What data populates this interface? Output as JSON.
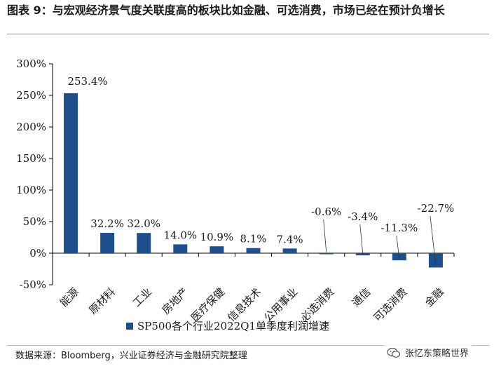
{
  "title": "图表 9：与宏观经济景气度关联度高的板块比如金融、可选消费，市场已经在预计负增长",
  "source": "数据来源：Bloomberg，兴业证券经济与金融研究院整理",
  "watermark": {
    "text": "张忆东策略世界",
    "icon": "wechat-icon"
  },
  "colors": {
    "bar": "#1f4e8c",
    "axis": "#000000"
  },
  "chart_data": {
    "type": "bar",
    "categories": [
      "能源",
      "原材料",
      "工业",
      "房地产",
      "医疗保健",
      "信息技术",
      "公用事业",
      "必选消费",
      "通信",
      "可选消费",
      "金融"
    ],
    "series": [
      {
        "name": "SP500各个行业2022Q1单季度利润增速",
        "values": [
          253.4,
          32.2,
          32.0,
          14.0,
          10.9,
          8.1,
          7.4,
          -0.6,
          -3.4,
          -11.3,
          -22.7
        ]
      }
    ],
    "data_labels": [
      "253.4%",
      "32.2%",
      "32.0%",
      "14.0%",
      "10.9%",
      "8.1%",
      "7.4%",
      "-0.6%",
      "-3.4%",
      "-11.3%",
      "-22.7%"
    ],
    "yticks": [
      -50,
      0,
      50,
      100,
      150,
      200,
      250,
      300
    ],
    "ytick_labels": [
      "-50%",
      "0%",
      "50%",
      "100%",
      "150%",
      "200%",
      "250%",
      "300%"
    ],
    "ylim": [
      -50,
      300
    ],
    "legend": "SP500各个行业2022Q1单季度利润增速",
    "legend_position": "bottom-left",
    "grid": false
  }
}
